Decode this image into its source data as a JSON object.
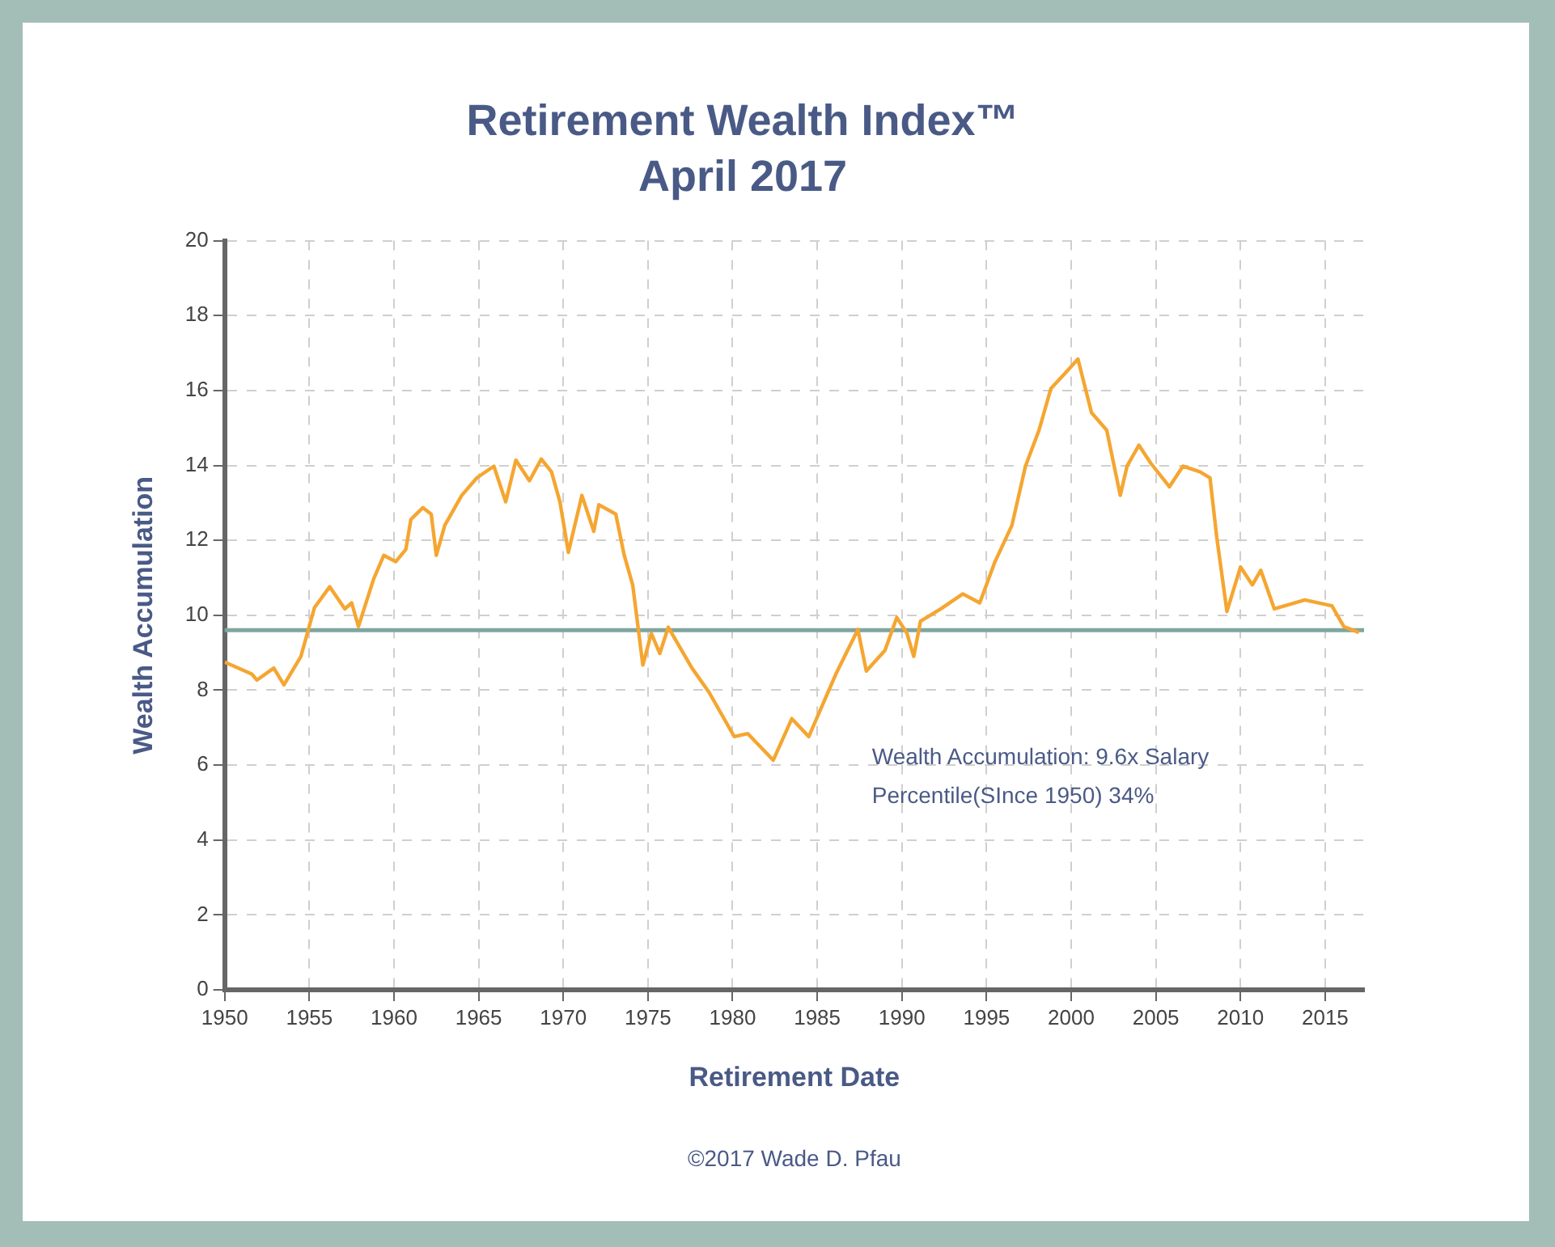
{
  "chart_data": {
    "type": "line",
    "title": "Retirement Wealth Index™",
    "subtitle": "April 2017",
    "xlabel": "Retirement Date",
    "ylabel": "Wealth Accumulation",
    "x": [
      1950.0,
      1951.6,
      1951.9,
      1952.9,
      1953.5,
      1954.5,
      1955.3,
      1956.2,
      1957.1,
      1957.5,
      1957.9,
      1958.8,
      1959.4,
      1960.1,
      1960.7,
      1961.0,
      1961.7,
      1962.2,
      1962.5,
      1963.0,
      1964.0,
      1964.9,
      1965.9,
      1966.6,
      1967.2,
      1968.0,
      1968.7,
      1969.3,
      1969.8,
      1970.3,
      1971.1,
      1971.8,
      1972.1,
      1973.1,
      1973.6,
      1974.1,
      1974.7,
      1975.2,
      1975.7,
      1976.2,
      1977.6,
      1978.6,
      1980.1,
      1980.9,
      1982.4,
      1983.5,
      1984.5,
      1986.1,
      1987.4,
      1987.9,
      1989.0,
      1989.7,
      1990.3,
      1990.7,
      1991.1,
      1992.3,
      1993.6,
      1994.6,
      1995.5,
      1996.5,
      1997.3,
      1998.1,
      1998.8,
      1999.6,
      2000.4,
      2001.2,
      2002.1,
      2002.9,
      2003.3,
      2004.0,
      2004.7,
      2005.8,
      2006.6,
      2007.6,
      2008.2,
      2008.6,
      2009.2,
      2010.0,
      2010.7,
      2011.2,
      2012.0,
      2013.8,
      2015.4,
      2016.1,
      2017.0
    ],
    "series": [
      {
        "color": "#f5a631",
        "values": [
          8.75,
          8.43,
          8.27,
          8.59,
          8.14,
          8.9,
          10.2,
          10.76,
          10.17,
          10.33,
          9.7,
          10.97,
          11.6,
          11.43,
          11.76,
          12.56,
          12.87,
          12.7,
          11.6,
          12.4,
          13.2,
          13.67,
          13.98,
          13.03,
          14.14,
          13.59,
          14.17,
          13.83,
          13.03,
          11.68,
          13.2,
          12.24,
          12.95,
          12.7,
          11.6,
          10.81,
          8.67,
          9.52,
          8.98,
          9.68,
          8.59,
          7.95,
          6.76,
          6.84,
          6.13,
          7.24,
          6.76,
          8.43,
          9.62,
          8.51,
          9.06,
          9.94,
          9.52,
          8.9,
          9.84,
          10.17,
          10.57,
          10.33,
          11.43,
          12.4,
          13.98,
          14.94,
          16.05,
          16.44,
          16.84,
          15.41,
          14.94,
          13.2,
          13.98,
          14.54,
          14.06,
          13.43,
          13.98,
          13.83,
          13.67,
          12.08,
          10.1,
          11.29,
          10.81,
          11.2,
          10.17,
          10.41,
          10.25,
          9.7,
          9.54
        ]
      }
    ],
    "xlim": [
      1950,
      2017.3
    ],
    "xticks": [
      1950,
      1955,
      1960,
      1965,
      1970,
      1975,
      1980,
      1985,
      1990,
      1995,
      2000,
      2005,
      2010,
      2015
    ],
    "ylim": [
      0,
      20
    ],
    "yticks": [
      0,
      2,
      4,
      6,
      8,
      10,
      12,
      14,
      16,
      18,
      20
    ],
    "ref_lines": [
      {
        "axis": "y",
        "value": 9.6,
        "color": "#7fa59f"
      }
    ],
    "annotations": [
      "Wealth Accumulation: 9.6x Salary",
      "Percentile(SInce 1950) 34%",
      "©2017 Wade D. Pfau"
    ],
    "grid": true,
    "line_style": "solid",
    "marker": "none",
    "legend": false
  }
}
